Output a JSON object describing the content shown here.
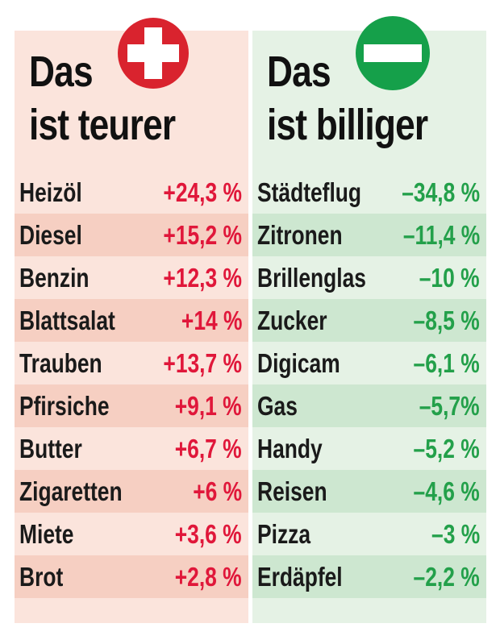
{
  "left": {
    "title": [
      "Das",
      "ist teurer"
    ],
    "rows": [
      [
        "Heizöl",
        "+24,3 %"
      ],
      [
        "Diesel",
        "+15,2 %"
      ],
      [
        "Benzin",
        "+12,3 %"
      ],
      [
        "Blattsalat",
        "+14 %"
      ],
      [
        "Trauben",
        "+13,7 %"
      ],
      [
        "Pfirsiche",
        "+9,1 %"
      ],
      [
        "Butter",
        "+6,7 %"
      ],
      [
        "Zigaretten",
        "+6 %"
      ],
      [
        "Miete",
        "+3,6 %"
      ],
      [
        "Brot",
        "+2,8 %"
      ]
    ]
  },
  "right": {
    "title": [
      "Das",
      "ist billiger"
    ],
    "rows": [
      [
        "Städteflug",
        "–34,8 %"
      ],
      [
        "Zitronen",
        "–11,4 %"
      ],
      [
        "Brillenglas",
        "–10 %"
      ],
      [
        "Zucker",
        "–8,5 %"
      ],
      [
        "Digicam",
        "–6,1 %"
      ],
      [
        "Gas",
        "–5,7%"
      ],
      [
        "Handy",
        "–5,2 %"
      ],
      [
        "Reisen",
        "–4,6 %"
      ],
      [
        "Pizza",
        "–3 %"
      ],
      [
        "Erdäpfel",
        "–2,2 %"
      ]
    ]
  }
}
